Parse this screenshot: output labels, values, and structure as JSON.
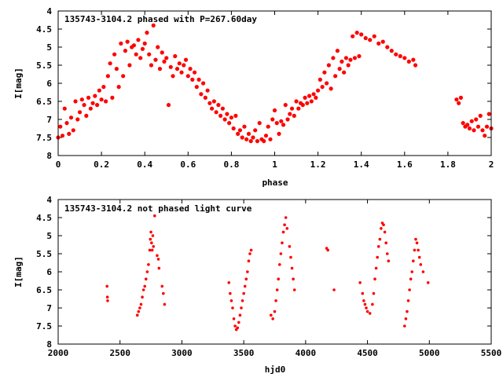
{
  "chart_data": [
    {
      "type": "scatter",
      "title": "135743-3104.2 phased with P=267.60day",
      "xlabel": "phase",
      "ylabel": "I[mag]",
      "xlim": [
        0,
        2
      ],
      "ylim": [
        8,
        4
      ],
      "y_inverted": true,
      "grid": false,
      "marker_color": "#ff0000",
      "x_ticks": [
        "0",
        "0.2",
        "0.4",
        "0.6",
        "0.8",
        "1",
        "1.2",
        "1.4",
        "1.6",
        "1.8",
        "2"
      ],
      "y_ticks": [
        "4",
        "4.5",
        "5",
        "5.5",
        "6",
        "6.5",
        "7",
        "7.5",
        "8"
      ],
      "series": [
        {
          "points": [
            [
              0.0,
              7.5
            ],
            [
              0.01,
              7.2
            ],
            [
              0.02,
              7.45
            ],
            [
              0.03,
              6.7
            ],
            [
              0.04,
              7.1
            ],
            [
              0.05,
              7.4
            ],
            [
              0.06,
              6.95
            ],
            [
              0.07,
              7.3
            ],
            [
              0.08,
              6.5
            ],
            [
              0.09,
              7.0
            ],
            [
              0.1,
              6.8
            ],
            [
              0.11,
              6.45
            ],
            [
              0.12,
              6.6
            ],
            [
              0.13,
              6.9
            ],
            [
              0.14,
              6.4
            ],
            [
              0.15,
              6.7
            ],
            [
              0.16,
              6.55
            ],
            [
              0.17,
              6.35
            ],
            [
              0.18,
              6.6
            ],
            [
              0.19,
              6.2
            ],
            [
              0.2,
              6.45
            ],
            [
              0.21,
              6.1
            ],
            [
              0.22,
              6.5
            ],
            [
              0.23,
              5.8
            ],
            [
              0.24,
              5.45
            ],
            [
              0.25,
              6.4
            ],
            [
              0.26,
              5.2
            ],
            [
              0.27,
              5.6
            ],
            [
              0.28,
              6.1
            ],
            [
              0.29,
              4.9
            ],
            [
              0.3,
              5.8
            ],
            [
              0.31,
              5.1
            ],
            [
              0.32,
              4.85
            ],
            [
              0.33,
              5.5
            ],
            [
              0.34,
              5.0
            ],
            [
              0.35,
              4.95
            ],
            [
              0.36,
              5.2
            ],
            [
              0.37,
              4.8
            ],
            [
              0.38,
              5.3
            ],
            [
              0.39,
              5.05
            ],
            [
              0.4,
              4.9
            ],
            [
              0.41,
              4.6
            ],
            [
              0.42,
              5.2
            ],
            [
              0.43,
              5.5
            ],
            [
              0.44,
              4.4
            ],
            [
              0.45,
              5.35
            ],
            [
              0.46,
              5.0
            ],
            [
              0.47,
              5.6
            ],
            [
              0.48,
              5.15
            ],
            [
              0.49,
              5.4
            ],
            [
              0.5,
              5.3
            ],
            [
              0.51,
              6.6
            ],
            [
              0.52,
              5.55
            ],
            [
              0.53,
              5.8
            ],
            [
              0.54,
              5.25
            ],
            [
              0.55,
              5.6
            ],
            [
              0.56,
              5.45
            ],
            [
              0.57,
              5.7
            ],
            [
              0.58,
              5.5
            ],
            [
              0.59,
              5.35
            ],
            [
              0.6,
              5.8
            ],
            [
              0.61,
              5.6
            ],
            [
              0.62,
              5.9
            ],
            [
              0.63,
              5.7
            ],
            [
              0.64,
              6.1
            ],
            [
              0.65,
              5.9
            ],
            [
              0.66,
              6.3
            ],
            [
              0.67,
              6.0
            ],
            [
              0.68,
              6.4
            ],
            [
              0.69,
              6.2
            ],
            [
              0.7,
              6.55
            ],
            [
              0.71,
              6.7
            ],
            [
              0.72,
              6.5
            ],
            [
              0.73,
              6.8
            ],
            [
              0.74,
              6.6
            ],
            [
              0.75,
              6.9
            ],
            [
              0.76,
              6.7
            ],
            [
              0.77,
              7.0
            ],
            [
              0.78,
              6.85
            ],
            [
              0.79,
              7.1
            ],
            [
              0.8,
              6.95
            ],
            [
              0.81,
              7.25
            ],
            [
              0.82,
              6.9
            ],
            [
              0.83,
              7.4
            ],
            [
              0.84,
              7.3
            ],
            [
              0.85,
              7.5
            ],
            [
              0.86,
              7.2
            ],
            [
              0.87,
              7.55
            ],
            [
              0.88,
              7.4
            ],
            [
              0.89,
              7.6
            ],
            [
              0.9,
              7.5
            ],
            [
              0.91,
              7.3
            ],
            [
              0.92,
              7.6
            ],
            [
              0.93,
              7.1
            ],
            [
              0.94,
              7.55
            ],
            [
              0.95,
              7.6
            ],
            [
              0.96,
              7.45
            ],
            [
              0.97,
              7.2
            ],
            [
              0.98,
              7.55
            ],
            [
              0.99,
              7.0
            ],
            [
              1.0,
              6.75
            ],
            [
              1.01,
              7.1
            ],
            [
              1.02,
              7.4
            ],
            [
              1.03,
              7.05
            ],
            [
              1.04,
              7.15
            ],
            [
              1.05,
              6.6
            ],
            [
              1.06,
              7.0
            ],
            [
              1.07,
              6.85
            ],
            [
              1.08,
              6.7
            ],
            [
              1.09,
              6.9
            ],
            [
              1.1,
              6.5
            ],
            [
              1.11,
              6.7
            ],
            [
              1.12,
              6.55
            ],
            [
              1.13,
              6.6
            ],
            [
              1.14,
              6.4
            ],
            [
              1.15,
              6.55
            ],
            [
              1.16,
              6.35
            ],
            [
              1.17,
              6.5
            ],
            [
              1.18,
              6.3
            ],
            [
              1.19,
              6.4
            ],
            [
              1.2,
              6.2
            ],
            [
              1.21,
              5.9
            ],
            [
              1.22,
              6.1
            ],
            [
              1.23,
              5.7
            ],
            [
              1.24,
              6.0
            ],
            [
              1.25,
              5.5
            ],
            [
              1.26,
              6.15
            ],
            [
              1.27,
              5.3
            ],
            [
              1.28,
              5.8
            ],
            [
              1.29,
              5.1
            ],
            [
              1.3,
              5.6
            ],
            [
              1.31,
              5.4
            ],
            [
              1.32,
              5.7
            ],
            [
              1.33,
              5.3
            ],
            [
              1.34,
              5.5
            ],
            [
              1.35,
              5.35
            ],
            [
              1.36,
              4.7
            ],
            [
              1.37,
              5.3
            ],
            [
              1.38,
              4.6
            ],
            [
              1.39,
              5.25
            ],
            [
              1.4,
              4.65
            ],
            [
              1.42,
              4.75
            ],
            [
              1.44,
              4.8
            ],
            [
              1.46,
              4.7
            ],
            [
              1.48,
              4.9
            ],
            [
              1.5,
              4.85
            ],
            [
              1.52,
              5.0
            ],
            [
              1.54,
              5.1
            ],
            [
              1.56,
              5.2
            ],
            [
              1.58,
              5.25
            ],
            [
              1.6,
              5.3
            ],
            [
              1.62,
              5.4
            ],
            [
              1.64,
              5.35
            ],
            [
              1.65,
              5.5
            ],
            [
              1.84,
              6.45
            ],
            [
              1.85,
              6.55
            ],
            [
              1.86,
              6.4
            ],
            [
              1.87,
              7.1
            ],
            [
              1.88,
              7.2
            ],
            [
              1.89,
              7.15
            ],
            [
              1.9,
              7.25
            ],
            [
              1.91,
              7.05
            ],
            [
              1.92,
              7.3
            ],
            [
              1.93,
              7.0
            ],
            [
              1.94,
              7.2
            ],
            [
              1.95,
              6.9
            ],
            [
              1.96,
              7.3
            ],
            [
              1.97,
              7.45
            ],
            [
              1.98,
              7.2
            ],
            [
              1.99,
              6.85
            ],
            [
              2.0,
              7.25
            ]
          ]
        }
      ]
    },
    {
      "type": "scatter",
      "title": "135743-3104.2 not phased light curve",
      "xlabel": "hjd0",
      "ylabel": "I[mag]",
      "xlim": [
        2000,
        5500
      ],
      "ylim": [
        8,
        4
      ],
      "y_inverted": true,
      "grid": false,
      "marker_color": "#ff0000",
      "x_ticks": [
        "2000",
        "2500",
        "3000",
        "3500",
        "4000",
        "4500",
        "5000",
        "5500"
      ],
      "y_ticks": [
        "4",
        "4.5",
        "5",
        "5.5",
        "6",
        "6.5",
        "7",
        "7.5",
        "8"
      ],
      "series": [
        {
          "points": [
            [
              2395,
              6.4
            ],
            [
              2398,
              6.7
            ],
            [
              2400,
              6.8
            ],
            [
              2640,
              7.2
            ],
            [
              2650,
              7.1
            ],
            [
              2660,
              7.0
            ],
            [
              2670,
              6.9
            ],
            [
              2680,
              6.7
            ],
            [
              2690,
              6.5
            ],
            [
              2700,
              6.4
            ],
            [
              2710,
              6.2
            ],
            [
              2720,
              6.0
            ],
            [
              2730,
              5.8
            ],
            [
              2740,
              5.4
            ],
            [
              2745,
              5.1
            ],
            [
              2750,
              4.9
            ],
            [
              2755,
              5.2
            ],
            [
              2760,
              5.4
            ],
            [
              2765,
              5.0
            ],
            [
              2770,
              5.3
            ],
            [
              2780,
              4.45
            ],
            [
              2800,
              5.55
            ],
            [
              2810,
              5.65
            ],
            [
              2815,
              5.9
            ],
            [
              2840,
              6.4
            ],
            [
              2850,
              6.6
            ],
            [
              2860,
              6.9
            ],
            [
              3380,
              6.3
            ],
            [
              3390,
              6.6
            ],
            [
              3400,
              6.8
            ],
            [
              3410,
              7.0
            ],
            [
              3420,
              7.3
            ],
            [
              3430,
              7.5
            ],
            [
              3440,
              7.6
            ],
            [
              3450,
              7.55
            ],
            [
              3460,
              7.4
            ],
            [
              3470,
              7.2
            ],
            [
              3480,
              7.0
            ],
            [
              3490,
              6.8
            ],
            [
              3500,
              6.6
            ],
            [
              3510,
              6.4
            ],
            [
              3520,
              6.2
            ],
            [
              3530,
              6.0
            ],
            [
              3540,
              5.7
            ],
            [
              3550,
              5.5
            ],
            [
              3560,
              5.4
            ],
            [
              3720,
              7.2
            ],
            [
              3735,
              7.3
            ],
            [
              3750,
              7.1
            ],
            [
              3760,
              6.8
            ],
            [
              3770,
              6.5
            ],
            [
              3780,
              6.2
            ],
            [
              3790,
              5.8
            ],
            [
              3800,
              5.5
            ],
            [
              3810,
              5.2
            ],
            [
              3820,
              4.9
            ],
            [
              3830,
              4.7
            ],
            [
              3840,
              4.5
            ],
            [
              3850,
              4.8
            ],
            [
              3870,
              5.3
            ],
            [
              3880,
              5.6
            ],
            [
              3890,
              5.9
            ],
            [
              3900,
              6.2
            ],
            [
              3910,
              6.5
            ],
            [
              4170,
              5.35
            ],
            [
              4180,
              5.4
            ],
            [
              4230,
              6.5
            ],
            [
              4440,
              6.3
            ],
            [
              4460,
              6.6
            ],
            [
              4470,
              6.8
            ],
            [
              4480,
              6.9
            ],
            [
              4490,
              7.0
            ],
            [
              4500,
              7.1
            ],
            [
              4520,
              7.15
            ],
            [
              4540,
              6.9
            ],
            [
              4550,
              6.6
            ],
            [
              4560,
              6.2
            ],
            [
              4570,
              5.9
            ],
            [
              4580,
              5.6
            ],
            [
              4590,
              5.3
            ],
            [
              4600,
              5.1
            ],
            [
              4610,
              4.8
            ],
            [
              4620,
              4.65
            ],
            [
              4630,
              4.7
            ],
            [
              4640,
              4.9
            ],
            [
              4650,
              5.2
            ],
            [
              4660,
              5.5
            ],
            [
              4670,
              5.7
            ],
            [
              4800,
              7.5
            ],
            [
              4810,
              7.3
            ],
            [
              4820,
              7.1
            ],
            [
              4830,
              6.8
            ],
            [
              4840,
              6.5
            ],
            [
              4850,
              6.2
            ],
            [
              4860,
              6.0
            ],
            [
              4870,
              5.7
            ],
            [
              4880,
              5.4
            ],
            [
              4890,
              5.1
            ],
            [
              4900,
              5.2
            ],
            [
              4910,
              5.4
            ],
            [
              4920,
              5.6
            ],
            [
              4930,
              5.8
            ],
            [
              4950,
              6.0
            ],
            [
              4990,
              6.3
            ]
          ]
        }
      ]
    }
  ]
}
